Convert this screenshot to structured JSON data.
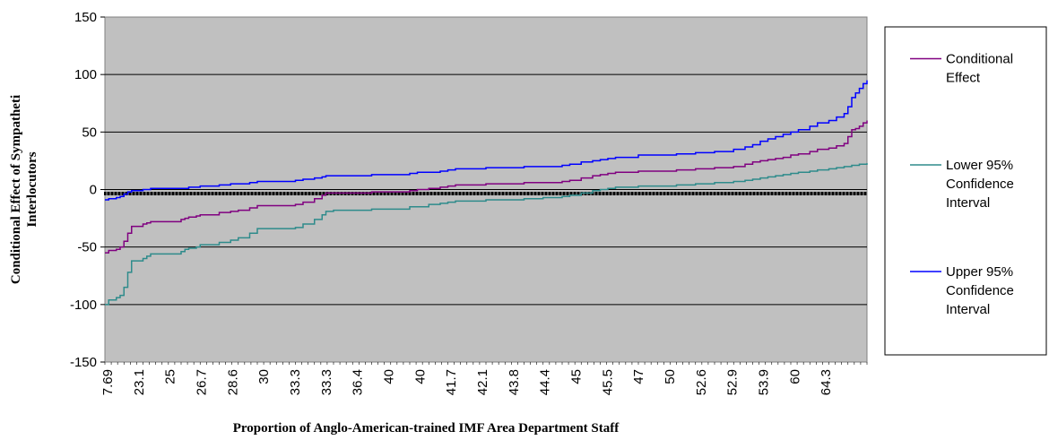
{
  "chart_data": {
    "type": "line",
    "title": "",
    "xlabel": "Proportion of Anglo-American-trained IMF Area Department Staff",
    "ylabel_lines": [
      "Conditional Effect of Sympatheti",
      "Interlocutors"
    ],
    "ylim": [
      -150,
      150
    ],
    "yticks": [
      -150,
      -100,
      -50,
      0,
      50,
      100,
      150
    ],
    "grid": true,
    "plot_background": "#c0c0c0",
    "legend_position": "right",
    "n_points": 120,
    "x_tick_labels": [
      "7.69",
      "23.1",
      "25",
      "26.7",
      "28.6",
      "30",
      "33.3",
      "33.3",
      "36.4",
      "40",
      "40",
      "41.7",
      "42.1",
      "43.8",
      "44.4",
      "45",
      "45.5",
      "47",
      "50",
      "52.6",
      "52.9",
      "53.9",
      "60",
      "64.3"
    ],
    "series": [
      {
        "name_lines": [
          "Conditional",
          "Effect"
        ],
        "color": "#800080",
        "points": [
          [
            0,
            -55
          ],
          [
            1,
            -53
          ],
          [
            3,
            -52
          ],
          [
            4,
            -50
          ],
          [
            5,
            -45
          ],
          [
            6,
            -38
          ],
          [
            7,
            -32
          ],
          [
            10,
            -30
          ],
          [
            11,
            -29
          ],
          [
            12,
            -28
          ],
          [
            20,
            -26
          ],
          [
            21,
            -25
          ],
          [
            22,
            -24
          ],
          [
            24,
            -23
          ],
          [
            25,
            -22
          ],
          [
            30,
            -20
          ],
          [
            33,
            -19
          ],
          [
            35,
            -18
          ],
          [
            38,
            -16
          ],
          [
            40,
            -14
          ],
          [
            50,
            -13
          ],
          [
            52,
            -11
          ],
          [
            55,
            -8
          ],
          [
            57,
            -5
          ],
          [
            58,
            -3
          ],
          [
            60,
            -3
          ],
          [
            70,
            -2
          ],
          [
            80,
            -1
          ],
          [
            82,
            0
          ],
          [
            85,
            1
          ],
          [
            88,
            2
          ],
          [
            90,
            3
          ],
          [
            92,
            4
          ],
          [
            100,
            5
          ],
          [
            110,
            6
          ],
          [
            120,
            7
          ],
          [
            122,
            8
          ],
          [
            125,
            10
          ],
          [
            128,
            12
          ],
          [
            130,
            13
          ],
          [
            132,
            14
          ],
          [
            134,
            15
          ],
          [
            140,
            16
          ],
          [
            150,
            17
          ],
          [
            155,
            18
          ],
          [
            160,
            19
          ],
          [
            165,
            20
          ],
          [
            168,
            22
          ],
          [
            170,
            24
          ],
          [
            172,
            25
          ],
          [
            174,
            26
          ],
          [
            176,
            27
          ],
          [
            178,
            28
          ],
          [
            180,
            30
          ],
          [
            182,
            31
          ],
          [
            185,
            33
          ],
          [
            187,
            35
          ],
          [
            190,
            36
          ],
          [
            192,
            38
          ],
          [
            194,
            40
          ],
          [
            195,
            46
          ],
          [
            196,
            52
          ],
          [
            197,
            53
          ],
          [
            198,
            55
          ],
          [
            199,
            58
          ],
          [
            200,
            60
          ]
        ]
      },
      {
        "name_lines": [
          "Lower 95%",
          "Confidence",
          "Interval"
        ],
        "color": "#2e8b8b",
        "points": [
          [
            0,
            -100
          ],
          [
            1,
            -96
          ],
          [
            3,
            -94
          ],
          [
            4,
            -92
          ],
          [
            5,
            -85
          ],
          [
            6,
            -72
          ],
          [
            7,
            -62
          ],
          [
            10,
            -60
          ],
          [
            11,
            -58
          ],
          [
            12,
            -56
          ],
          [
            20,
            -54
          ],
          [
            21,
            -52
          ],
          [
            22,
            -51
          ],
          [
            24,
            -50
          ],
          [
            25,
            -48
          ],
          [
            30,
            -46
          ],
          [
            33,
            -44
          ],
          [
            35,
            -42
          ],
          [
            38,
            -38
          ],
          [
            40,
            -34
          ],
          [
            50,
            -33
          ],
          [
            52,
            -30
          ],
          [
            55,
            -26
          ],
          [
            57,
            -22
          ],
          [
            58,
            -19
          ],
          [
            60,
            -18
          ],
          [
            70,
            -17
          ],
          [
            80,
            -15
          ],
          [
            85,
            -13
          ],
          [
            88,
            -12
          ],
          [
            90,
            -11
          ],
          [
            92,
            -10
          ],
          [
            100,
            -9
          ],
          [
            110,
            -8
          ],
          [
            115,
            -7
          ],
          [
            120,
            -6
          ],
          [
            122,
            -5
          ],
          [
            125,
            -3
          ],
          [
            128,
            -1
          ],
          [
            130,
            0
          ],
          [
            132,
            1
          ],
          [
            134,
            2
          ],
          [
            140,
            3
          ],
          [
            150,
            4
          ],
          [
            155,
            5
          ],
          [
            160,
            6
          ],
          [
            165,
            7
          ],
          [
            168,
            8
          ],
          [
            170,
            9
          ],
          [
            172,
            10
          ],
          [
            174,
            11
          ],
          [
            176,
            12
          ],
          [
            178,
            13
          ],
          [
            180,
            14
          ],
          [
            182,
            15
          ],
          [
            185,
            16
          ],
          [
            187,
            17
          ],
          [
            190,
            18
          ],
          [
            192,
            19
          ],
          [
            194,
            20
          ],
          [
            195,
            20
          ],
          [
            196,
            21
          ],
          [
            197,
            21
          ],
          [
            198,
            22
          ],
          [
            199,
            22
          ],
          [
            200,
            23
          ]
        ]
      },
      {
        "name_lines": [
          "Upper 95%",
          "Confidence",
          "Interval"
        ],
        "color": "#0000ff",
        "points": [
          [
            0,
            -9
          ],
          [
            1,
            -8
          ],
          [
            3,
            -7
          ],
          [
            4,
            -6
          ],
          [
            5,
            -4
          ],
          [
            6,
            -2
          ],
          [
            7,
            -1
          ],
          [
            10,
            0
          ],
          [
            11,
            0
          ],
          [
            12,
            1
          ],
          [
            20,
            1
          ],
          [
            21,
            1
          ],
          [
            22,
            2
          ],
          [
            24,
            2
          ],
          [
            25,
            3
          ],
          [
            30,
            4
          ],
          [
            33,
            5
          ],
          [
            35,
            5
          ],
          [
            38,
            6
          ],
          [
            40,
            7
          ],
          [
            50,
            8
          ],
          [
            52,
            9
          ],
          [
            55,
            10
          ],
          [
            57,
            11
          ],
          [
            58,
            12
          ],
          [
            60,
            12
          ],
          [
            70,
            13
          ],
          [
            80,
            14
          ],
          [
            82,
            15
          ],
          [
            85,
            15
          ],
          [
            88,
            16
          ],
          [
            90,
            17
          ],
          [
            92,
            18
          ],
          [
            100,
            19
          ],
          [
            110,
            20
          ],
          [
            120,
            21
          ],
          [
            122,
            22
          ],
          [
            125,
            24
          ],
          [
            128,
            25
          ],
          [
            130,
            26
          ],
          [
            132,
            27
          ],
          [
            134,
            28
          ],
          [
            140,
            30
          ],
          [
            150,
            31
          ],
          [
            155,
            32
          ],
          [
            160,
            33
          ],
          [
            165,
            35
          ],
          [
            168,
            37
          ],
          [
            170,
            39
          ],
          [
            172,
            42
          ],
          [
            174,
            44
          ],
          [
            176,
            46
          ],
          [
            178,
            48
          ],
          [
            180,
            50
          ],
          [
            182,
            52
          ],
          [
            185,
            55
          ],
          [
            187,
            58
          ],
          [
            190,
            60
          ],
          [
            192,
            63
          ],
          [
            194,
            66
          ],
          [
            195,
            72
          ],
          [
            196,
            80
          ],
          [
            197,
            84
          ],
          [
            198,
            88
          ],
          [
            199,
            92
          ],
          [
            200,
            95
          ]
        ]
      }
    ],
    "zero_band": {
      "color": "#000000",
      "from": -5,
      "to": -2
    }
  }
}
